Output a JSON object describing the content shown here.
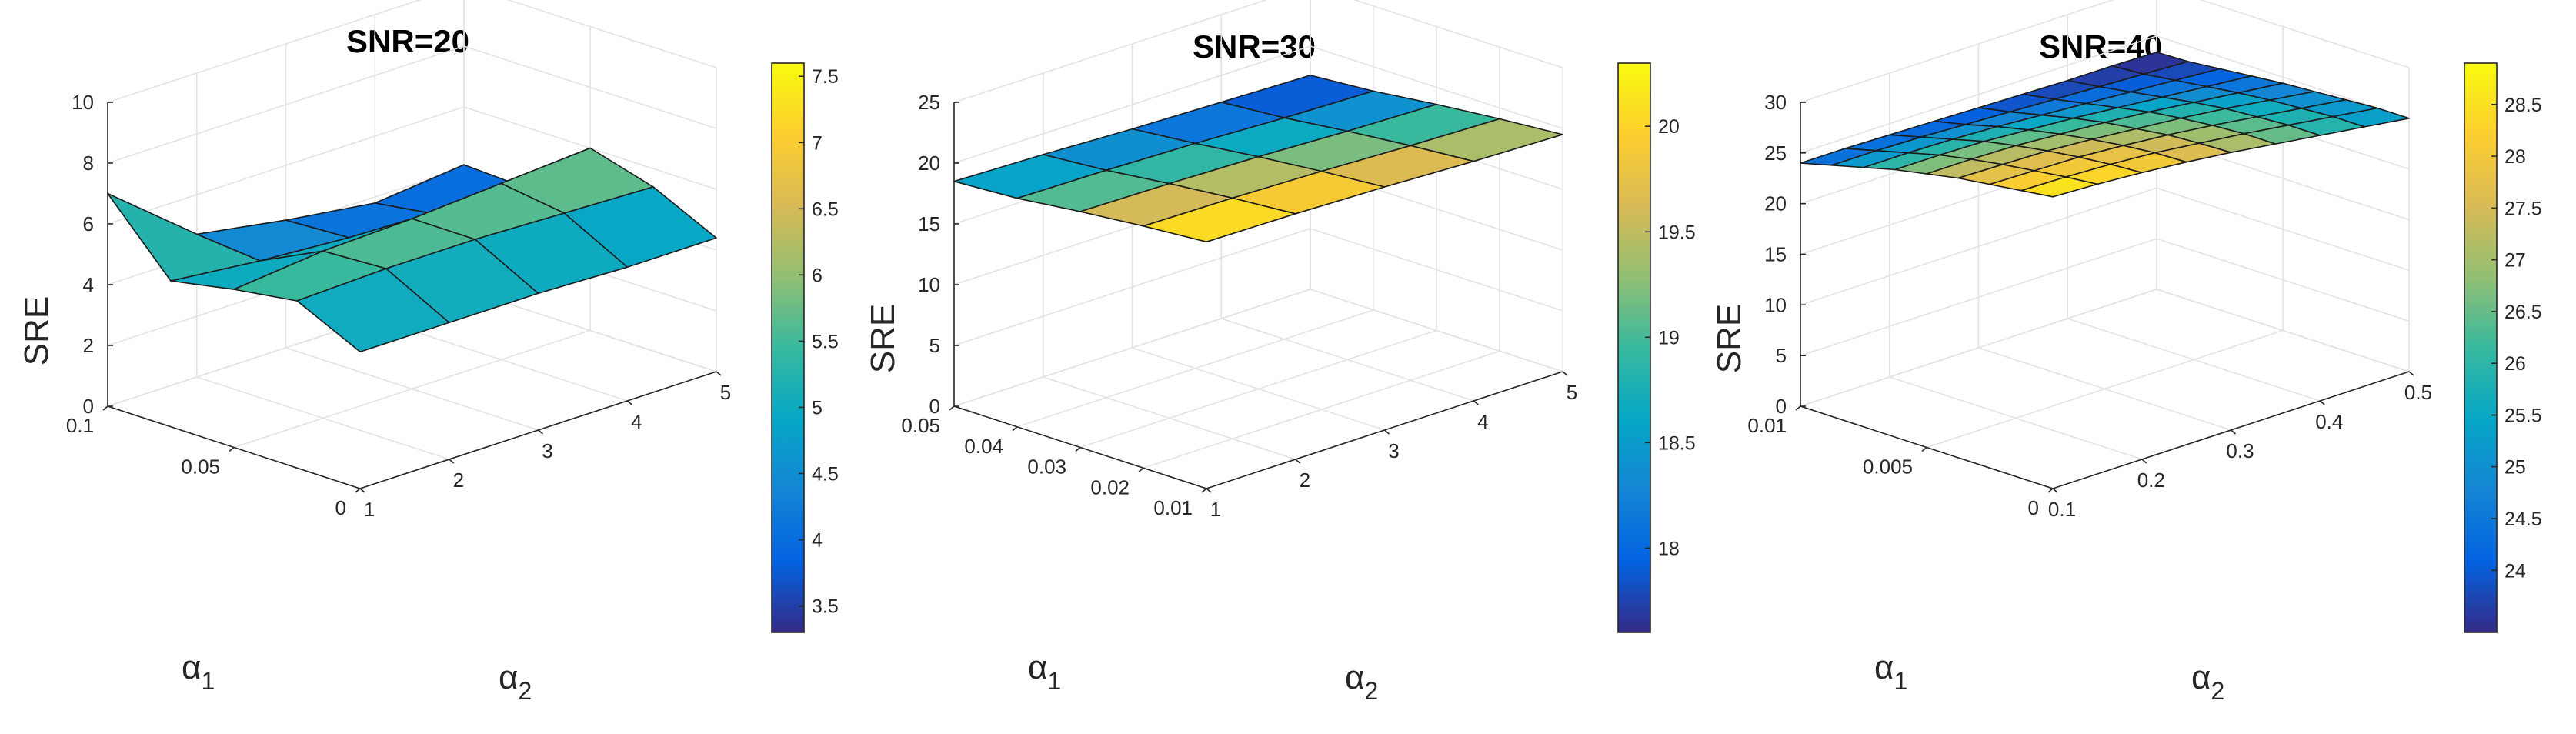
{
  "colors": {
    "parula": [
      "#352a87",
      "#0363e1",
      "#1485d4",
      "#06a7c6",
      "#38b99e",
      "#92bf73",
      "#d9ba56",
      "#fcce2e",
      "#f9fb0e"
    ],
    "grid": "#e3e3e3",
    "axis": "#262626"
  },
  "chart_data": [
    {
      "type": "surface",
      "title": "SNR=20",
      "xlabel": "α",
      "xlabel_sub": "2",
      "ylabel": "α",
      "ylabel_sub": "1",
      "zlabel": "SRE",
      "x": [
        1,
        2,
        3,
        4,
        5
      ],
      "y": [
        0,
        0.025,
        0.05,
        0.075,
        0.1
      ],
      "xlim": [
        1,
        5
      ],
      "ylim": [
        0,
        0.1
      ],
      "zlim": [
        0,
        10
      ],
      "xticks": [
        1,
        2,
        3,
        4,
        5
      ],
      "xtick_labels": [
        "1",
        "2",
        "3",
        "4",
        "5"
      ],
      "yticks": [
        0,
        0.05,
        0.1
      ],
      "ytick_labels": [
        "0",
        "0.05",
        "0.1"
      ],
      "zticks": [
        0,
        2,
        4,
        6,
        8,
        10
      ],
      "ztick_labels": [
        "0",
        "2",
        "4",
        "6",
        "8",
        "10"
      ],
      "z": [
        [
          4.5,
          4.5,
          4.5,
          4.4,
          4.4
        ],
        [
          5.5,
          5.6,
          5.6,
          5.5,
          5.4
        ],
        [
          5.2,
          5.5,
          5.6,
          5.8,
          6.0
        ],
        [
          4.8,
          4.5,
          4.3,
          4.1,
          4.0
        ],
        [
          7.0,
          4.7,
          4.2,
          3.8,
          4.1
        ]
      ],
      "colorbar": {
        "min": 3.3,
        "max": 7.6,
        "ticks": [
          3.5,
          4,
          4.5,
          5,
          5.5,
          6,
          6.5,
          7,
          7.5
        ],
        "tick_labels": [
          "3.5",
          "4",
          "4.5",
          "5",
          "5.5",
          "6",
          "6.5",
          "7",
          "7.5"
        ]
      }
    },
    {
      "type": "surface",
      "title": "SNR=30",
      "xlabel": "α",
      "xlabel_sub": "2",
      "ylabel": "α",
      "ylabel_sub": "1",
      "zlabel": "SRE",
      "x": [
        1,
        2,
        3,
        4,
        5
      ],
      "y": [
        0.01,
        0.02,
        0.03,
        0.04,
        0.05
      ],
      "xlim": [
        1,
        5
      ],
      "ylim": [
        0.01,
        0.05
      ],
      "zlim": [
        0,
        25
      ],
      "xticks": [
        1,
        2,
        3,
        4,
        5
      ],
      "xtick_labels": [
        "1",
        "2",
        "3",
        "4",
        "5"
      ],
      "yticks": [
        0.01,
        0.02,
        0.03,
        0.04,
        0.05
      ],
      "ytick_labels": [
        "0.01",
        "0.02",
        "0.03",
        "0.04",
        "0.05"
      ],
      "zticks": [
        0,
        5,
        10,
        15,
        20,
        25
      ],
      "ztick_labels": [
        "0",
        "5",
        "10",
        "15",
        "20",
        "25"
      ],
      "z": [
        [
          20.3,
          20.2,
          20.0,
          19.7,
          19.5
        ],
        [
          19.9,
          19.8,
          19.6,
          19.3,
          19.1
        ],
        [
          19.4,
          19.3,
          19.1,
          18.8,
          18.6
        ],
        [
          18.8,
          18.7,
          18.5,
          18.2,
          18.0
        ],
        [
          18.5,
          18.3,
          18.0,
          17.8,
          17.6
        ]
      ],
      "colorbar": {
        "min": 17.6,
        "max": 20.3,
        "ticks": [
          18,
          18.5,
          19,
          19.5,
          20
        ],
        "tick_labels": [
          "18",
          "18.5",
          "19",
          "19.5",
          "20"
        ]
      }
    },
    {
      "type": "surface",
      "title": "SNR=40",
      "xlabel": "α",
      "xlabel_sub": "2",
      "ylabel": "α",
      "ylabel_sub": "1",
      "zlabel": "SRE",
      "x": [
        0.1,
        0.15,
        0.2,
        0.25,
        0.3,
        0.35,
        0.4,
        0.45,
        0.5
      ],
      "y": [
        0,
        0.00125,
        0.0025,
        0.00375,
        0.005,
        0.00625,
        0.0075,
        0.00875,
        0.01
      ],
      "xlim": [
        0.1,
        0.5
      ],
      "ylim": [
        0,
        0.01
      ],
      "zlim": [
        0,
        30
      ],
      "xticks": [
        0.1,
        0.2,
        0.3,
        0.4,
        0.5
      ],
      "xtick_labels": [
        "0.1",
        "0.2",
        "0.3",
        "0.4",
        "0.5"
      ],
      "yticks": [
        0,
        0.005,
        0.01
      ],
      "ytick_labels": [
        "0",
        "0.005",
        "0.01"
      ],
      "zticks": [
        0,
        5,
        10,
        15,
        20,
        25,
        30
      ],
      "ztick_labels": [
        "0",
        "5",
        "10",
        "15",
        "20",
        "25",
        "30"
      ],
      "z": [
        [
          28.8,
          28.6,
          28.3,
          27.9,
          27.4,
          26.8,
          26.2,
          25.6,
          25.0
        ],
        [
          28.4,
          28.3,
          28.1,
          27.8,
          27.3,
          26.8,
          26.2,
          25.6,
          25.0
        ],
        [
          28.0,
          27.9,
          27.8,
          27.5,
          27.1,
          26.6,
          26.0,
          25.4,
          24.8
        ],
        [
          27.6,
          27.5,
          27.4,
          27.1,
          26.7,
          26.3,
          25.8,
          25.2,
          24.6
        ],
        [
          27.0,
          27.0,
          26.9,
          26.6,
          26.3,
          25.9,
          25.4,
          24.9,
          24.4
        ],
        [
          26.4,
          26.4,
          26.3,
          26.0,
          25.7,
          25.3,
          24.9,
          24.5,
          24.1
        ],
        [
          25.6,
          25.6,
          25.5,
          25.3,
          25.0,
          24.7,
          24.4,
          24.1,
          23.8
        ],
        [
          24.8,
          24.8,
          24.7,
          24.5,
          24.3,
          24.1,
          23.9,
          23.7,
          23.5
        ],
        [
          24.0,
          24.0,
          23.9,
          23.8,
          23.7,
          23.6,
          23.5,
          23.5,
          23.4
        ]
      ],
      "colorbar": {
        "min": 23.4,
        "max": 28.9,
        "ticks": [
          24,
          24.5,
          25,
          25.5,
          26,
          26.5,
          27,
          27.5,
          28,
          28.5
        ],
        "tick_labels": [
          "24",
          "24.5",
          "25",
          "25.5",
          "26",
          "26.5",
          "27",
          "27.5",
          "28",
          "28.5"
        ]
      }
    }
  ]
}
